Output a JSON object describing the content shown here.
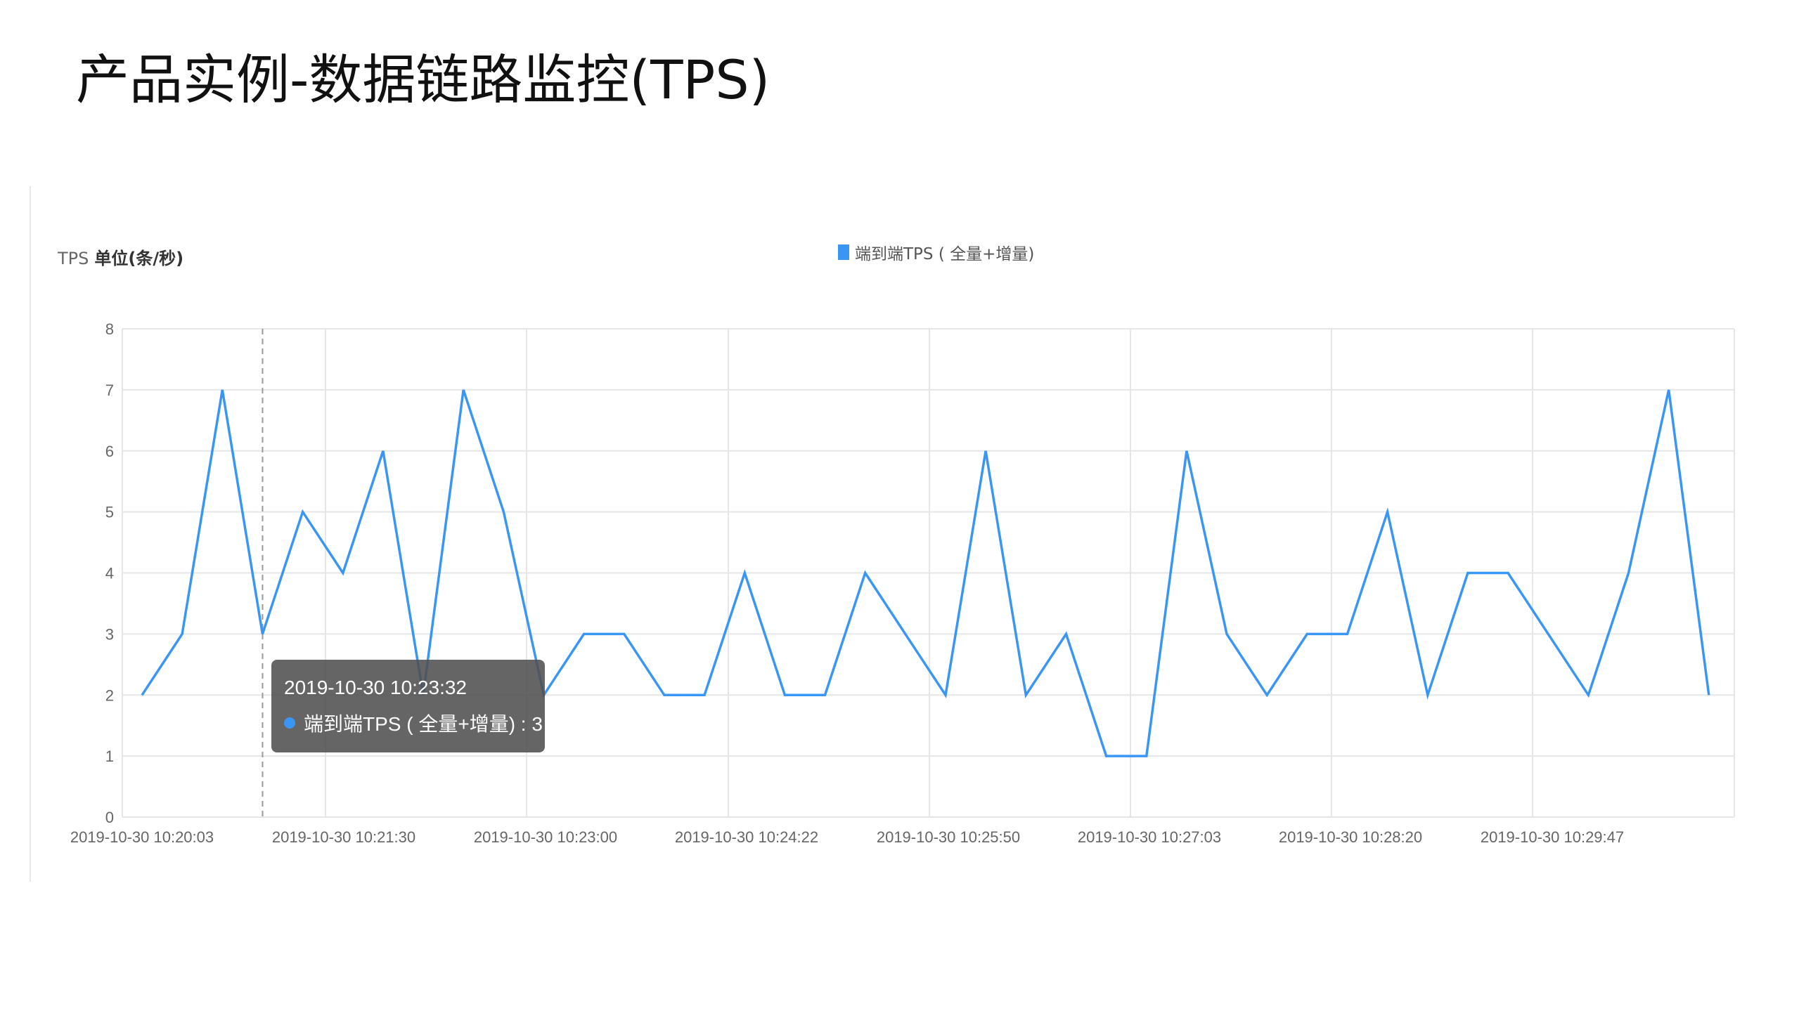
{
  "page": {
    "title": "产品实例-数据链路监控(TPS)"
  },
  "chart": {
    "axis_title_prefix": "TPS",
    "axis_title_unit": "单位(条/秒)",
    "legend_label": "端到端TPS ( 全量+增量)",
    "tooltip": {
      "time": "2019-10-30 10:23:32",
      "series_label": "端到端TPS ( 全量+增量) : 3"
    },
    "colors": {
      "line": "#3a96f5",
      "grid": "#e6e6e6",
      "tooltip_bg": "#505050"
    }
  },
  "chart_data": {
    "type": "line",
    "title": "产品实例-数据链路监控(TPS)",
    "xlabel": "",
    "ylabel": "TPS 单位(条/秒)",
    "ylim": [
      0,
      8
    ],
    "yticks": [
      0,
      1,
      2,
      3,
      4,
      5,
      6,
      7,
      8
    ],
    "grid": true,
    "legend_position": "top-center",
    "x_tick_labels": [
      "2019-10-30 10:20:03",
      "2019-10-30 10:21:30",
      "2019-10-30 10:23:00",
      "2019-10-30 10:24:22",
      "2019-10-30 10:25:50",
      "2019-10-30 10:27:03",
      "2019-10-30 10:28:20",
      "2019-10-30 10:29:47"
    ],
    "series": [
      {
        "name": "端到端TPS ( 全量+增量)",
        "color": "#3a96f5",
        "values": [
          2,
          3,
          7,
          3,
          5,
          4,
          6,
          2,
          7,
          5,
          2,
          3,
          3,
          2,
          2,
          4,
          2,
          2,
          4,
          3,
          2,
          6,
          2,
          3,
          1,
          1,
          6,
          3,
          2,
          3,
          3,
          5,
          2,
          4,
          4,
          3,
          2,
          4,
          7,
          2
        ]
      }
    ],
    "tooltip": {
      "x": "2019-10-30 10:23:32",
      "value": 3,
      "point_index": 3
    }
  }
}
